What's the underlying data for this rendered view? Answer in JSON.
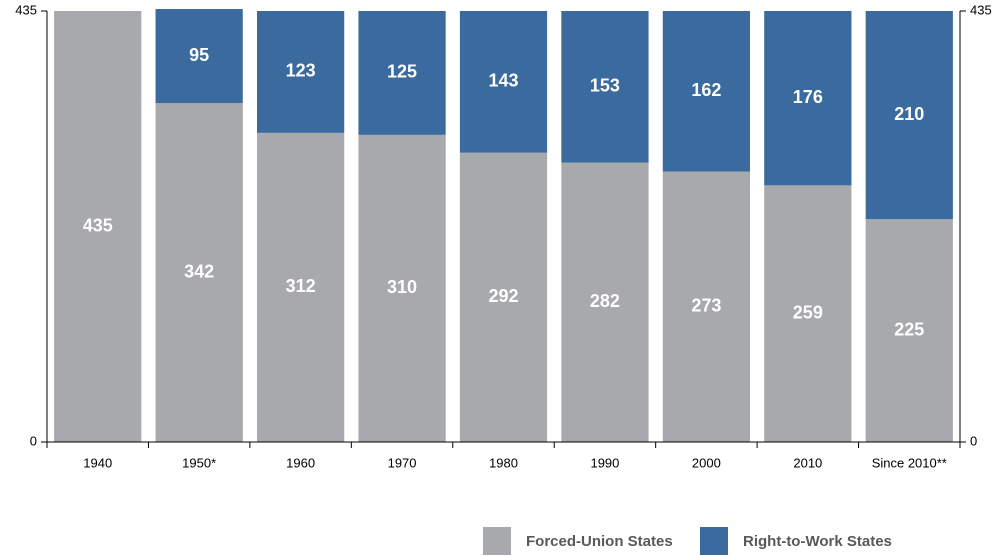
{
  "chart_data": {
    "type": "stacked_bar",
    "categories": [
      "1940",
      "1950*",
      "1960",
      "1970",
      "1980",
      "1990",
      "2000",
      "2010",
      "Since 2010**"
    ],
    "series": [
      {
        "name": "Forced-Union States",
        "color": "#a7a9ac",
        "values": [
          435,
          342,
          312,
          310,
          292,
          282,
          273,
          259,
          225
        ]
      },
      {
        "name": "Right-to-Work States",
        "color": "#3b6a9e",
        "values": [
          null,
          95,
          123,
          125,
          143,
          153,
          162,
          176,
          210
        ]
      }
    ],
    "ylim": [
      0,
      435
    ],
    "yticks": [
      0,
      435
    ],
    "y2lim": [
      0,
      435
    ],
    "y2ticks": [
      0,
      435
    ],
    "legend": "bottom"
  }
}
